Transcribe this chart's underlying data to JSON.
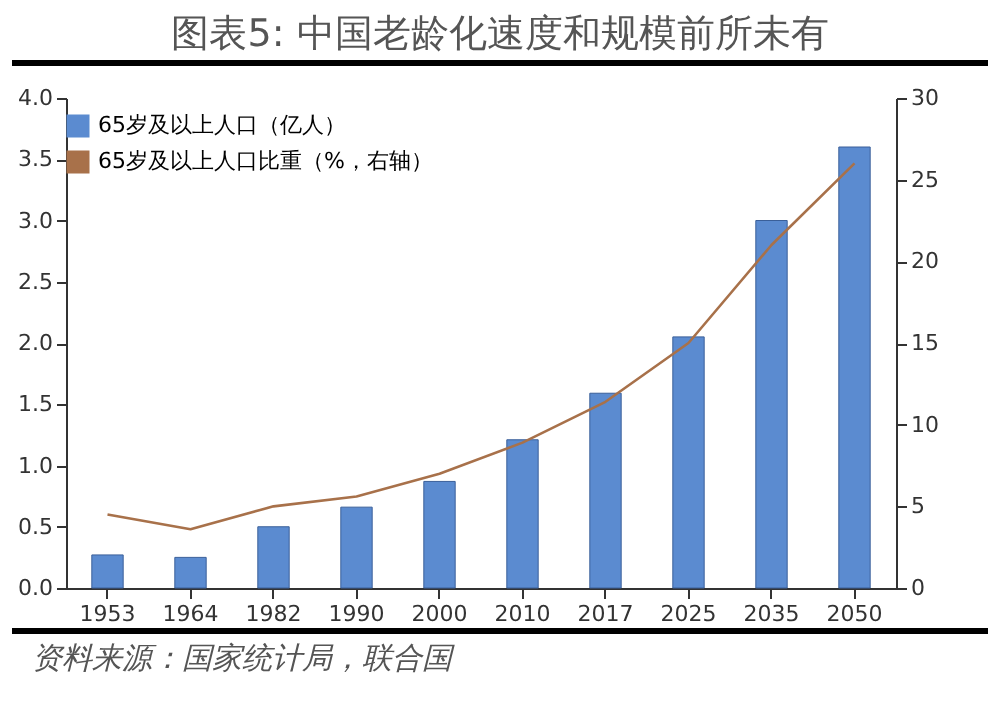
{
  "chart_data": {
    "type": "bar",
    "title": "图表5:   中国老龄化速度和规模前所未有",
    "categories": [
      "1953",
      "1964",
      "1982",
      "1990",
      "2000",
      "2010",
      "2017",
      "2025",
      "2035",
      "2050"
    ],
    "series": [
      {
        "name": "65岁及以上人口（亿人）",
        "color": "#5b8bd0",
        "values": [
          0.27,
          0.25,
          0.5,
          0.66,
          0.87,
          1.21,
          1.59,
          2.05,
          3.0,
          3.6
        ]
      },
      {
        "name": "65岁及以上人口比重（%，右轴）",
        "type": "line",
        "axis": "y2",
        "color": "#a8714a",
        "values": [
          4.5,
          3.6,
          5.0,
          5.6,
          7.0,
          8.9,
          11.4,
          15,
          21,
          26
        ]
      }
    ],
    "ylim": [
      0,
      4
    ],
    "yticks": [
      {
        "value": 0,
        "label": "0.0"
      },
      {
        "value": 0.5,
        "label": "0.5"
      },
      {
        "value": 1,
        "label": "1.0"
      },
      {
        "value": 1.5,
        "label": "1.5"
      },
      {
        "value": 2,
        "label": "2.0"
      },
      {
        "value": 2.5,
        "label": "2.5"
      },
      {
        "value": 3,
        "label": "3.0"
      },
      {
        "value": 3.5,
        "label": "3.5"
      },
      {
        "value": 4,
        "label": "4.0"
      }
    ],
    "y2lim": [
      0,
      30
    ],
    "y2ticks": [
      0,
      5,
      10,
      15,
      20,
      25,
      30
    ],
    "legend": "top",
    "annotations": [
      "资料来源：国家统计局，联合国"
    ]
  }
}
